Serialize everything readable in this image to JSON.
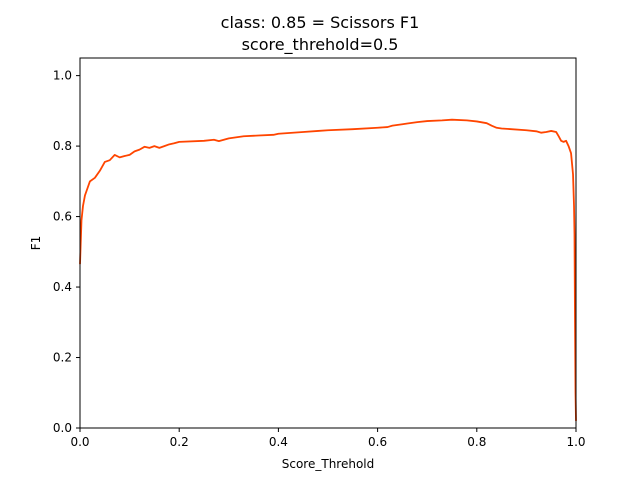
{
  "chart_data": {
    "type": "line",
    "title": "class: 0.85 = Scissors F1",
    "subtitle": "score_threhold=0.5",
    "xlabel": "Score_Threhold",
    "ylabel": "F1",
    "xlim": [
      0.0,
      1.0
    ],
    "ylim": [
      0.0,
      1.05
    ],
    "x_ticks": [
      "0.0",
      "0.2",
      "0.4",
      "0.6",
      "0.8",
      "1.0"
    ],
    "y_ticks": [
      "0.0",
      "0.2",
      "0.4",
      "0.6",
      "0.8",
      "1.0"
    ],
    "grid": false,
    "series": [
      {
        "color": "#ff4500",
        "x": [
          0.0,
          0.003,
          0.006,
          0.01,
          0.015,
          0.02,
          0.03,
          0.04,
          0.05,
          0.06,
          0.07,
          0.08,
          0.09,
          0.1,
          0.11,
          0.12,
          0.13,
          0.14,
          0.15,
          0.16,
          0.17,
          0.18,
          0.19,
          0.2,
          0.25,
          0.27,
          0.28,
          0.3,
          0.33,
          0.36,
          0.39,
          0.4,
          0.45,
          0.48,
          0.5,
          0.55,
          0.6,
          0.62,
          0.63,
          0.65,
          0.66,
          0.68,
          0.7,
          0.73,
          0.75,
          0.78,
          0.8,
          0.82,
          0.83,
          0.84,
          0.85,
          0.9,
          0.92,
          0.93,
          0.94,
          0.95,
          0.96,
          0.965,
          0.97,
          0.975,
          0.98,
          0.985,
          0.99,
          0.992,
          0.994,
          0.996,
          0.997,
          0.998,
          0.999,
          1.0
        ],
        "y": [
          0.465,
          0.59,
          0.63,
          0.66,
          0.68,
          0.7,
          0.71,
          0.73,
          0.755,
          0.76,
          0.775,
          0.768,
          0.772,
          0.775,
          0.785,
          0.79,
          0.798,
          0.795,
          0.8,
          0.795,
          0.8,
          0.805,
          0.808,
          0.812,
          0.815,
          0.818,
          0.814,
          0.822,
          0.828,
          0.83,
          0.832,
          0.835,
          0.84,
          0.843,
          0.845,
          0.848,
          0.852,
          0.854,
          0.858,
          0.862,
          0.864,
          0.868,
          0.871,
          0.873,
          0.875,
          0.873,
          0.87,
          0.865,
          0.858,
          0.852,
          0.85,
          0.845,
          0.842,
          0.838,
          0.84,
          0.843,
          0.84,
          0.828,
          0.815,
          0.812,
          0.815,
          0.8,
          0.78,
          0.75,
          0.72,
          0.63,
          0.55,
          0.3,
          0.1,
          0.02
        ]
      }
    ]
  }
}
